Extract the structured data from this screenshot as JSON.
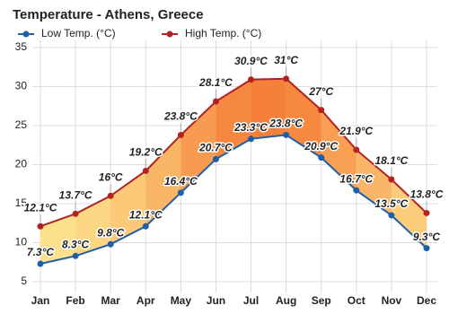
{
  "chart_data": {
    "type": "line",
    "title": "Temperature - Athens, Greece",
    "categories": [
      "Jan",
      "Feb",
      "Mar",
      "Apr",
      "May",
      "Jun",
      "Jul",
      "Aug",
      "Sep",
      "Oct",
      "Nov",
      "Dec"
    ],
    "series": [
      {
        "name": "Low Temp. (°C)",
        "color": "#1f5fa6",
        "values": [
          7.3,
          8.3,
          9.8,
          12.1,
          16.4,
          20.7,
          23.3,
          23.8,
          20.9,
          16.7,
          13.5,
          9.3
        ],
        "value_labels": [
          "7.3°C",
          "8.3°C",
          "9.8°C",
          "12.1°C",
          "16.4°C",
          "20.7°C",
          "23.3°C",
          "23.8°C",
          "20.9°C",
          "16.7°C",
          "13.5°C",
          "9.3°C"
        ]
      },
      {
        "name": "High Temp. (°C)",
        "color": "#b22222",
        "values": [
          12.1,
          13.7,
          16,
          19.2,
          23.8,
          28.1,
          30.9,
          31,
          27,
          21.9,
          18.1,
          13.8
        ],
        "value_labels": [
          "12.1°C",
          "13.7°C",
          "16°C",
          "19.2°C",
          "23.8°C",
          "28.1°C",
          "30.9°C",
          "31°C",
          "27°C",
          "21.9°C",
          "18.1°C",
          "13.8°C"
        ]
      }
    ],
    "ylim": [
      4,
      35
    ],
    "yticks": [
      5,
      10,
      15,
      20,
      25,
      30,
      35
    ],
    "grid": true,
    "legend": "top-left"
  }
}
